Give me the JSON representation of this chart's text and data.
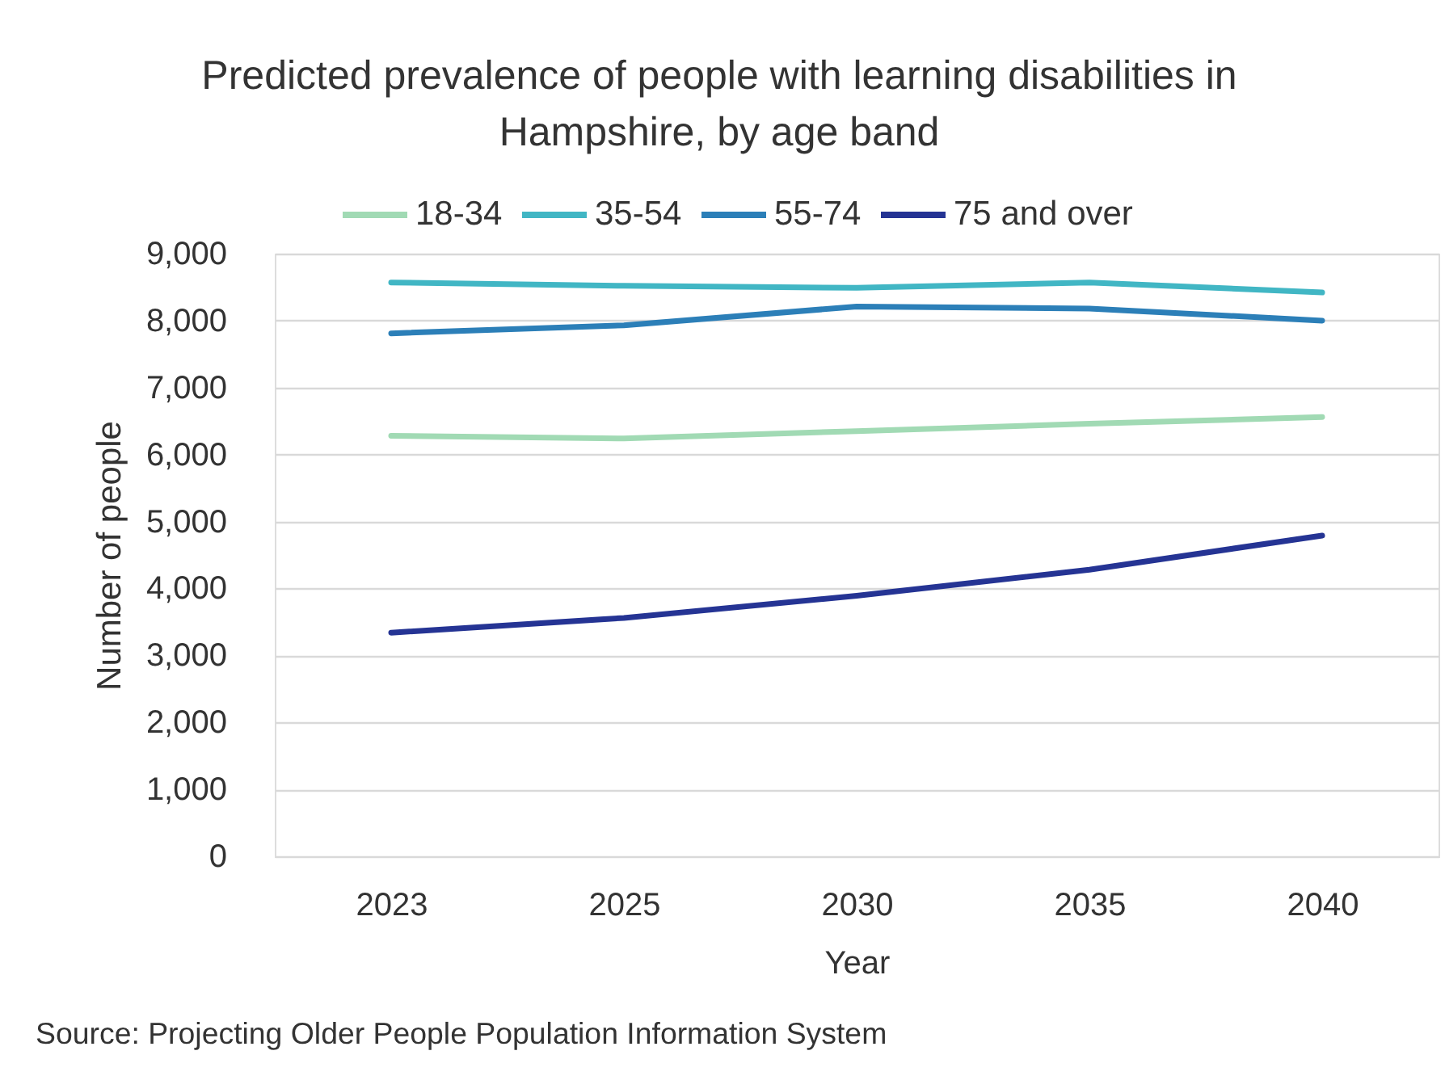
{
  "chart_data": {
    "type": "line",
    "title": "Predicted prevalence of people with learning disabilities in Hampshire, by age band",
    "xlabel": "Year",
    "ylabel": "Number of people",
    "categories": [
      "2023",
      "2025",
      "2030",
      "2035",
      "2040"
    ],
    "series": [
      {
        "name": "18-34",
        "color": "#a1dab4",
        "values": [
          6280,
          6240,
          6350,
          6460,
          6560
        ]
      },
      {
        "name": "35-54",
        "color": "#41b6c4",
        "values": [
          8570,
          8520,
          8490,
          8570,
          8420
        ]
      },
      {
        "name": "55-74",
        "color": "#2c7fb8",
        "values": [
          7810,
          7930,
          8210,
          8180,
          8000
        ]
      },
      {
        "name": "75 and over",
        "color": "#253494",
        "values": [
          3340,
          3560,
          3890,
          4280,
          4790
        ]
      }
    ],
    "ylim": [
      0,
      9000
    ],
    "yticks": [
      0,
      {
        "value": 1000,
        "label": "1,000"
      },
      {
        "value": 2000,
        "label": "2,000"
      },
      {
        "value": 3000,
        "label": "3,000"
      },
      {
        "value": 4000,
        "label": "4,000"
      },
      {
        "value": 5000,
        "label": "5,000"
      },
      {
        "value": 6000,
        "label": "6,000"
      },
      {
        "value": 7000,
        "label": "7,000"
      },
      {
        "value": 8000,
        "label": "8,000"
      },
      {
        "value": 9000,
        "label": "9,000"
      }
    ],
    "grid": "y",
    "legend": "top",
    "line_style": "solid",
    "annotations": [
      "Source: Projecting Older People Population Information System"
    ]
  }
}
